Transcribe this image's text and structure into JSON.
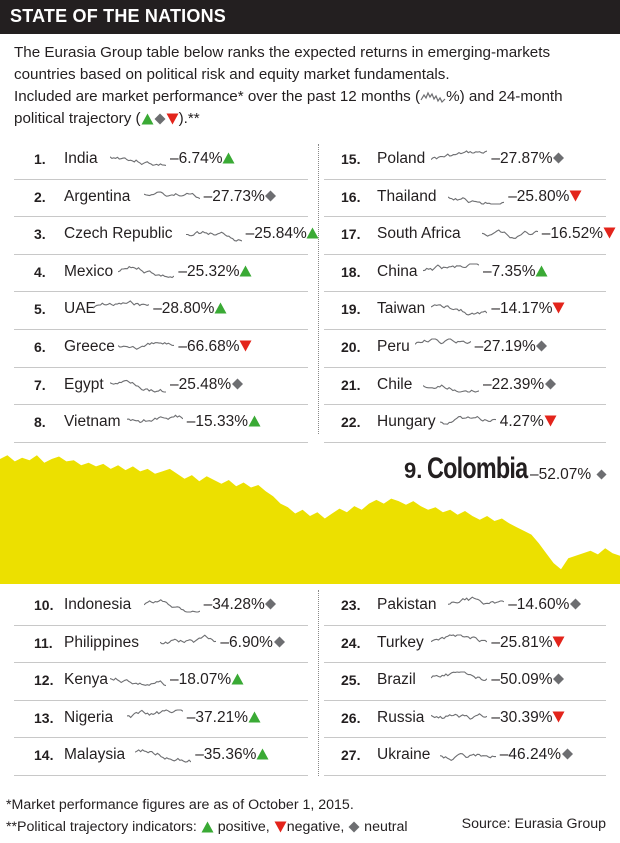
{
  "header": {
    "title": "STATE OF THE NATIONS"
  },
  "intro": {
    "line1": "The Eurasia Group table below ranks the expected returns in emerging-markets",
    "line2": "countries based on political risk and equity market fundamentals.",
    "line3_a": "Included are market performance* over the past 12 months (",
    "line3_b": "%) and 24-month",
    "line4_a": "political trajectory (",
    "line4_b": ").**"
  },
  "colors": {
    "positive": "#3aaa35",
    "negative": "#e3241b",
    "neutral": "#6d6e71",
    "highlight": "#ece000",
    "header_bg": "#231f20"
  },
  "chart_data": {
    "type": "table",
    "columns": [
      "rank",
      "country",
      "market_performance_pct",
      "political_trajectory"
    ],
    "rows": [
      {
        "rank": "1.",
        "country": "India",
        "pct": "–6.74%",
        "value": -6.74,
        "trend": "positive"
      },
      {
        "rank": "2.",
        "country": "Argentina",
        "pct": "–27.73%",
        "value": -27.73,
        "trend": "neutral"
      },
      {
        "rank": "3.",
        "country": "Czech Republic",
        "pct": "–25.84%",
        "value": -25.84,
        "trend": "positive"
      },
      {
        "rank": "4.",
        "country": "Mexico",
        "pct": "–25.32%",
        "value": -25.32,
        "trend": "positive"
      },
      {
        "rank": "5.",
        "country": "UAE",
        "pct": "–28.80%",
        "value": -28.8,
        "trend": "positive"
      },
      {
        "rank": "6.",
        "country": "Greece",
        "pct": "–66.68%",
        "value": -66.68,
        "trend": "negative"
      },
      {
        "rank": "7.",
        "country": "Egypt",
        "pct": "–25.48%",
        "value": -25.48,
        "trend": "neutral"
      },
      {
        "rank": "8.",
        "country": "Vietnam",
        "pct": "–15.33%",
        "value": -15.33,
        "trend": "positive"
      },
      {
        "rank": "9.",
        "country": "Colombia",
        "pct": "–52.07%",
        "value": -52.07,
        "trend": "neutral"
      },
      {
        "rank": "10.",
        "country": "Indonesia",
        "pct": "–34.28%",
        "value": -34.28,
        "trend": "neutral"
      },
      {
        "rank": "11.",
        "country": "Philippines",
        "pct": "–6.90%",
        "value": -6.9,
        "trend": "neutral"
      },
      {
        "rank": "12.",
        "country": "Kenya",
        "pct": "–18.07%",
        "value": -18.07,
        "trend": "positive"
      },
      {
        "rank": "13.",
        "country": "Nigeria",
        "pct": "–37.21%",
        "value": -37.21,
        "trend": "positive"
      },
      {
        "rank": "14.",
        "country": "Malaysia",
        "pct": "–35.36%",
        "value": -35.36,
        "trend": "positive"
      },
      {
        "rank": "15.",
        "country": "Poland",
        "pct": "–27.87%",
        "value": -27.87,
        "trend": "neutral"
      },
      {
        "rank": "16.",
        "country": "Thailand",
        "pct": "–25.80%",
        "value": -25.8,
        "trend": "negative"
      },
      {
        "rank": "17.",
        "country": "South Africa",
        "pct": "–16.52%",
        "value": -16.52,
        "trend": "negative"
      },
      {
        "rank": "18.",
        "country": "China",
        "pct": "–7.35%",
        "value": -7.35,
        "trend": "positive"
      },
      {
        "rank": "19.",
        "country": "Taiwan",
        "pct": "–14.17%",
        "value": -14.17,
        "trend": "negative"
      },
      {
        "rank": "20.",
        "country": "Peru",
        "pct": "–27.19%",
        "value": -27.19,
        "trend": "neutral"
      },
      {
        "rank": "21.",
        "country": "Chile",
        "pct": "–22.39%",
        "value": -22.39,
        "trend": "neutral"
      },
      {
        "rank": "22.",
        "country": "Hungary",
        "pct": "4.27%",
        "value": 4.27,
        "trend": "negative"
      },
      {
        "rank": "23.",
        "country": "Pakistan",
        "pct": "–14.60%",
        "value": -14.6,
        "trend": "neutral"
      },
      {
        "rank": "24.",
        "country": "Turkey",
        "pct": "–25.81%",
        "value": -25.81,
        "trend": "negative"
      },
      {
        "rank": "25.",
        "country": "Brazil",
        "pct": "–50.09%",
        "value": -50.09,
        "trend": "neutral"
      },
      {
        "rank": "26.",
        "country": "Russia",
        "pct": "–30.39%",
        "value": -30.39,
        "trend": "negative"
      },
      {
        "rank": "27.",
        "country": "Ukraine",
        "pct": "–46.24%",
        "value": -46.24,
        "trend": "neutral"
      }
    ],
    "featured": {
      "rank": "9.",
      "country": "Colombia",
      "pct": "–52.07%",
      "trend": "neutral",
      "series_shape": "area",
      "relative_level": [
        0.96,
        0.99,
        0.94,
        0.97,
        0.95,
        0.99,
        0.93,
        0.96,
        0.98,
        0.94,
        0.95,
        0.91,
        0.93,
        0.9,
        0.92,
        0.88,
        0.91,
        0.87,
        0.9,
        0.86,
        0.88,
        0.84,
        0.86,
        0.88,
        0.84,
        0.8,
        0.83,
        0.78,
        0.82,
        0.79,
        0.76,
        0.79,
        0.74,
        0.77,
        0.73,
        0.75,
        0.7,
        0.66,
        0.6,
        0.57,
        0.52,
        0.55,
        0.5,
        0.53,
        0.48,
        0.52,
        0.56,
        0.53,
        0.58,
        0.55,
        0.6,
        0.63,
        0.6,
        0.64,
        0.62,
        0.59,
        0.62,
        0.58,
        0.55,
        0.57,
        0.53,
        0.55,
        0.51,
        0.54,
        0.5,
        0.47,
        0.5,
        0.46,
        0.48,
        0.44,
        0.41,
        0.38,
        0.35,
        0.28,
        0.2,
        0.12,
        0.07,
        0.16,
        0.18,
        0.2,
        0.22,
        0.19,
        0.24,
        0.2,
        0.18
      ]
    }
  },
  "featured_display": {
    "rank": "9.",
    "name": "Colombia",
    "pct": "–52.07%"
  },
  "notes": {
    "line1": "*Market performance figures are as of October 1, 2015.",
    "line2_a": "**Political trajectory indicators: ",
    "positive_label": " positive, ",
    "negative_label": "negative, ",
    "neutral_label": " neutral"
  },
  "source": "Source: Eurasia Group"
}
